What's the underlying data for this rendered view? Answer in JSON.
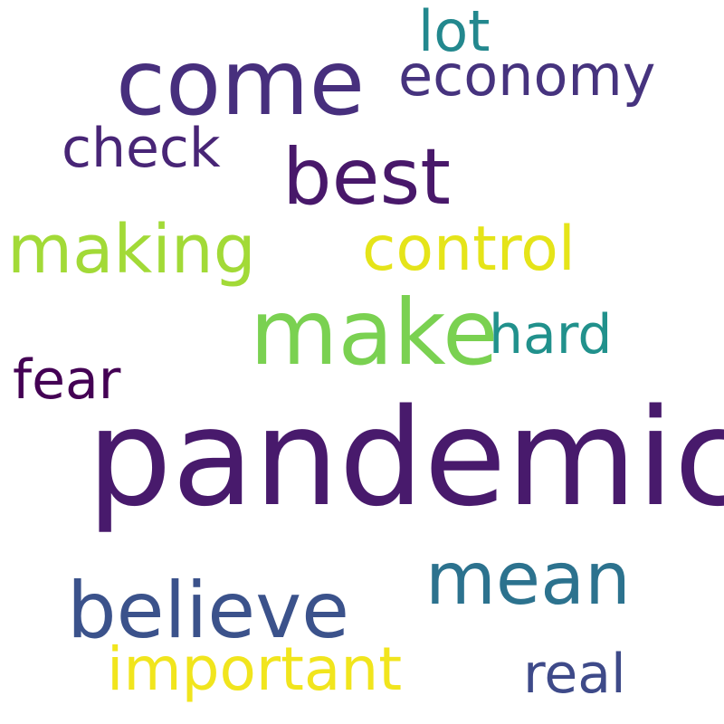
{
  "words": [
    {
      "id": "pandemic",
      "text": "pandemic",
      "color": "#481a6c"
    },
    {
      "id": "come",
      "text": "come",
      "color": "#472f7d"
    },
    {
      "id": "make",
      "text": "make",
      "color": "#7ad151"
    },
    {
      "id": "believe",
      "text": "believe",
      "color": "#3b528b"
    },
    {
      "id": "best",
      "text": "best",
      "color": "#48186a"
    },
    {
      "id": "mean",
      "text": "mean",
      "color": "#2c728e"
    },
    {
      "id": "making",
      "text": "making",
      "color": "#a2da37"
    },
    {
      "id": "control",
      "text": "control",
      "color": "#e5e419"
    },
    {
      "id": "important",
      "text": "important",
      "color": "#f1e51d"
    },
    {
      "id": "economy",
      "text": "economy",
      "color": "#46337e"
    },
    {
      "id": "check",
      "text": "check",
      "color": "#482576"
    },
    {
      "id": "fear",
      "text": "fear",
      "color": "#440154"
    },
    {
      "id": "hard",
      "text": "hard",
      "color": "#21918c"
    },
    {
      "id": "real",
      "text": "real",
      "color": "#3e4a89"
    },
    {
      "id": "lot",
      "text": "lot",
      "color": "#23888e"
    }
  ]
}
